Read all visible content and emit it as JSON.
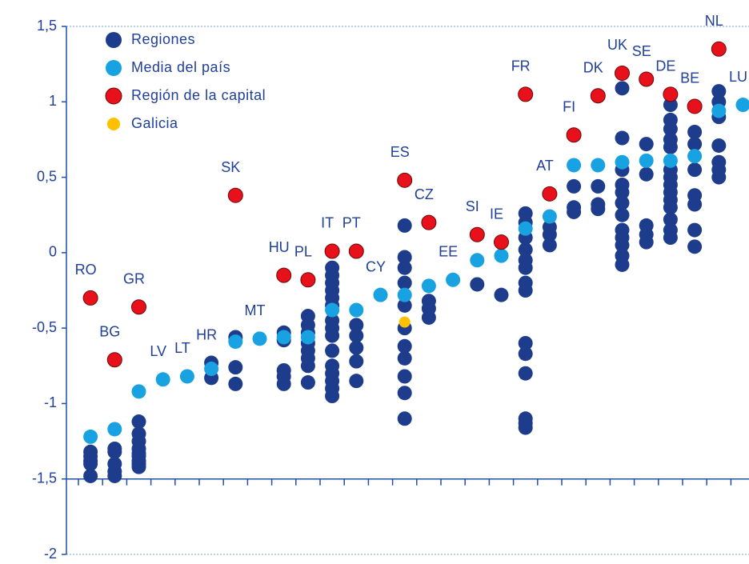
{
  "chart_data": {
    "type": "scatter",
    "categories": [
      "RO",
      "BG",
      "GR",
      "LV",
      "LT",
      "HR",
      "SK",
      "MT",
      "HU",
      "PL",
      "IT",
      "PT",
      "CY",
      "ES",
      "CZ",
      "EE",
      "SI",
      "IE",
      "FR",
      "AT",
      "FI",
      "DK",
      "UK",
      "SE",
      "DE",
      "BE",
      "NL",
      "LU"
    ],
    "series": [
      {
        "name": "Regiones",
        "color": "#1e3c8c",
        "values": [
          [
            -1.32,
            -1.35,
            -1.38,
            -1.4,
            -1.48
          ],
          [
            -1.3,
            -1.32,
            -1.4,
            -1.45,
            -1.48
          ],
          [
            -1.12,
            -1.2,
            -1.25,
            -1.3,
            -1.33,
            -1.35,
            -1.38,
            -1.4,
            -1.42
          ],
          [],
          [],
          [
            -0.73,
            -0.83
          ],
          [
            -0.56,
            -0.76,
            -0.87
          ],
          [],
          [
            -0.53,
            -0.58,
            -0.78,
            -0.82,
            -0.87
          ],
          [
            -0.42,
            -0.48,
            -0.53,
            -0.6,
            -0.65,
            -0.7,
            -0.75,
            -0.86
          ],
          [
            -0.1,
            -0.15,
            -0.2,
            -0.25,
            -0.3,
            -0.35,
            -0.45,
            -0.5,
            -0.55,
            -0.65,
            -0.75,
            -0.8,
            -0.85,
            -0.9,
            -0.95
          ],
          [
            -0.48,
            -0.55,
            -0.63,
            -0.72,
            -0.85
          ],
          [],
          [
            0.18,
            -0.03,
            -0.1,
            -0.2,
            -0.35,
            -0.5,
            -0.62,
            -0.7,
            -0.82,
            -0.93,
            -1.1
          ],
          [
            -0.32,
            -0.37,
            -0.43
          ],
          [],
          [
            -0.21
          ],
          [
            -0.28
          ],
          [
            0.26,
            0.2,
            0.1,
            0.02,
            -0.05,
            -0.1,
            -0.2,
            -0.25,
            -0.6,
            -0.67,
            -0.8,
            -1.1,
            -1.13,
            -1.16
          ],
          [
            0.17,
            0.12,
            0.05
          ],
          [
            0.44,
            0.3,
            0.27
          ],
          [
            0.44,
            0.32,
            0.29
          ],
          [
            1.09,
            0.76,
            0.55,
            0.45,
            0.4,
            0.33,
            0.25,
            0.15,
            0.1,
            0.05,
            -0.02,
            -0.08
          ],
          [
            0.72,
            0.52,
            0.18,
            0.12,
            0.07
          ],
          [
            0.98,
            0.88,
            0.82,
            0.75,
            0.7,
            0.55,
            0.5,
            0.45,
            0.4,
            0.35,
            0.3,
            0.22,
            0.15,
            0.1
          ],
          [
            0.8,
            0.72,
            0.55,
            0.38,
            0.32,
            0.15,
            0.04
          ],
          [
            1.07,
            1.0,
            0.9,
            0.71,
            0.6,
            0.55,
            0.5
          ],
          []
        ]
      },
      {
        "name": "Media del país",
        "color": "#18a2e2",
        "values": [
          -1.22,
          -1.17,
          -0.92,
          -0.84,
          -0.82,
          -0.77,
          -0.59,
          -0.57,
          -0.56,
          -0.56,
          -0.38,
          -0.38,
          -0.28,
          -0.28,
          -0.22,
          -0.18,
          -0.05,
          -0.02,
          0.16,
          0.24,
          0.58,
          0.58,
          0.6,
          0.61,
          0.61,
          0.64,
          0.94,
          0.98
        ]
      },
      {
        "name": "Región de la capital",
        "color": "#e8101a",
        "values": [
          -0.3,
          -0.71,
          -0.36,
          null,
          null,
          null,
          0.38,
          null,
          -0.15,
          -0.18,
          0.01,
          0.01,
          null,
          0.48,
          0.2,
          null,
          0.12,
          0.07,
          1.05,
          0.39,
          0.78,
          1.04,
          1.19,
          1.15,
          1.05,
          0.97,
          1.35,
          null
        ]
      },
      {
        "name": "Galicia",
        "color": "#ffc000",
        "values": [
          null,
          null,
          null,
          null,
          null,
          null,
          null,
          null,
          null,
          null,
          null,
          null,
          null,
          -0.46,
          null,
          null,
          null,
          null,
          null,
          null,
          null,
          null,
          null,
          null,
          null,
          null,
          null,
          null
        ]
      }
    ],
    "ylim": [
      -2,
      1.5
    ],
    "yticks": [
      {
        "value": 1.5,
        "label": "1,5"
      },
      1,
      {
        "value": 0.5,
        "label": "0,5"
      },
      0,
      {
        "value": -0.5,
        "label": "-0,5"
      },
      -1,
      {
        "value": -1.5,
        "label": "-1,5"
      },
      -2
    ],
    "x_axis_crosses": -1.5,
    "legend": "top-left"
  }
}
